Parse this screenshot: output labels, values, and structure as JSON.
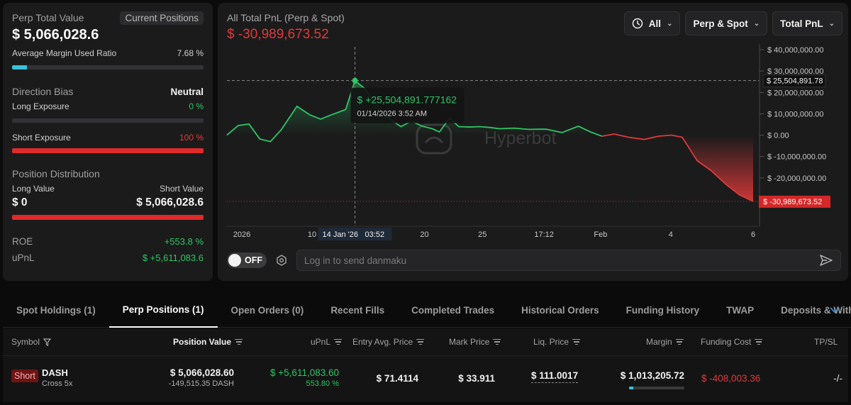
{
  "left": {
    "perp_total_label": "Perp Total Value",
    "current_positions_btn": "Current Positions",
    "perp_total_value": "$ 5,066,028.6",
    "margin_ratio_label": "Average Margin Used Ratio",
    "margin_ratio_value": "7.68 %",
    "margin_ratio_fraction": 0.0768,
    "direction_bias_label": "Direction Bias",
    "direction_bias_value": "Neutral",
    "long_exposure_label": "Long Exposure",
    "long_exposure_value": "0 %",
    "long_exposure_fraction": 0,
    "short_exposure_label": "Short Exposure",
    "short_exposure_value": "100 %",
    "short_exposure_fraction": 1,
    "position_dist_label": "Position Distribution",
    "long_value_label": "Long Value",
    "short_value_label": "Short Value",
    "long_value": "$ 0",
    "short_value": "$ 5,066,028.6",
    "roe_label": "ROE",
    "roe_value": "+553.8 %",
    "upnl_label": "uPnL",
    "upnl_value": "$ +5,611,083.6"
  },
  "chart": {
    "title": "All Total PnL (Perp & Spot)",
    "value": "$ -30,989,673.52",
    "ctrl_range": "All",
    "ctrl_scope": "Perp & Spot",
    "ctrl_metric": "Total PnL",
    "watermark": "Hyperbot",
    "tooltip_value": "$ +25,504,891.777162",
    "tooltip_date": "01/14/2026 3:52 AM",
    "cross_label_y": "$ 25,504,891.78",
    "last_label_y": "$ -30,989,673.52",
    "cross_label_x_date": "14 Jan '26",
    "cross_label_x_time": "03:52",
    "danmaku_toggle": "OFF",
    "danmaku_placeholder": "Log in to send danmaku",
    "accent_green": "#2fc566",
    "accent_red": "#e03a3a"
  },
  "chart_data": {
    "type": "line",
    "title": "All Total PnL (Perp & Spot)",
    "xlabel": "",
    "ylabel": "",
    "ylim": [
      -35000000,
      40000000
    ],
    "y_ticks": [
      "$ 40,000,000.00",
      "$ 30,000,000.00",
      "$ 20,000,000.00",
      "$ 10,000,000.00",
      "$ 0.00",
      "$ -10,000,000.00",
      "$ -20,000,000.00"
    ],
    "y_tick_values": [
      40000000,
      30000000,
      20000000,
      10000000,
      0,
      -10000000,
      -20000000
    ],
    "x_ticks": [
      "2026",
      "10",
      "20",
      "25",
      "17:12",
      "Feb",
      "4",
      "6"
    ],
    "x_tick_values": [
      0,
      98,
      255,
      336,
      422,
      501,
      599,
      714
    ],
    "x_span": 714,
    "grid": false,
    "series": [
      {
        "points": [
          [
            -21,
            0
          ],
          [
            -5,
            4500000
          ],
          [
            10,
            5200000
          ],
          [
            25,
            -1800000
          ],
          [
            40,
            -3000000
          ],
          [
            55,
            2500000
          ],
          [
            77,
            13500000
          ],
          [
            95,
            9500000
          ],
          [
            110,
            7500000
          ],
          [
            125,
            9500000
          ],
          [
            145,
            12000000
          ],
          [
            158,
            25504892
          ],
          [
            171,
            22000000
          ],
          [
            183,
            16500000
          ],
          [
            194,
            11500000
          ],
          [
            205,
            8000000
          ],
          [
            222,
            4000000
          ],
          [
            237,
            6500000
          ],
          [
            252,
            4200000
          ],
          [
            266,
            3000000
          ],
          [
            276,
            1500000
          ],
          [
            290,
            8000000
          ],
          [
            303,
            4000000
          ],
          [
            318,
            3800000
          ],
          [
            332,
            4000000
          ],
          [
            346,
            3600000
          ],
          [
            360,
            3000000
          ],
          [
            380,
            3300000
          ],
          [
            400,
            2700000
          ],
          [
            425,
            2800000
          ],
          [
            447,
            1200000
          ],
          [
            470,
            4200000
          ],
          [
            487,
            1500000
          ],
          [
            503,
            -500000
          ],
          [
            520,
            500000
          ],
          [
            540,
            -1000000
          ],
          [
            562,
            -2000000
          ],
          [
            582,
            -500000
          ],
          [
            600,
            0
          ],
          [
            615,
            -1000000
          ],
          [
            636,
            -12000000
          ],
          [
            655,
            -16500000
          ],
          [
            676,
            -23000000
          ],
          [
            695,
            -28000000
          ],
          [
            714,
            -30989673
          ]
        ]
      }
    ]
  },
  "tabs": [
    {
      "label": "Spot Holdings (1)",
      "active": false
    },
    {
      "label": "Perp Positions (1)",
      "active": true
    },
    {
      "label": "Open Orders (0)",
      "active": false
    },
    {
      "label": "Recent Fills",
      "active": false
    },
    {
      "label": "Completed Trades",
      "active": false
    },
    {
      "label": "Historical Orders",
      "active": false
    },
    {
      "label": "Funding History",
      "active": false
    },
    {
      "label": "TWAP",
      "active": false
    },
    {
      "label": "Deposits & Withdraw",
      "active": false
    }
  ],
  "table": {
    "headers": {
      "symbol": "Symbol",
      "position_value": "Position Value",
      "upnl": "uPnL",
      "entry_price": "Entry Avg. Price",
      "mark_price": "Mark Price",
      "liq_price": "Liq. Price",
      "margin": "Margin",
      "funding_cost": "Funding Cost",
      "tpsl": "TP/SL"
    },
    "rows": [
      {
        "side": "Short",
        "symbol": "DASH",
        "leverage": "Cross 5x",
        "position_value": "$ 5,066,028.60",
        "position_size": "-149,515.35 DASH",
        "upnl": "$ +5,611,083.60",
        "upnl_pct": "553.80 %",
        "entry_price": "$ 71.4114",
        "mark_price": "$ 33.911",
        "liq_price": "$ 111.0017",
        "margin": "$ 1,013,205.72",
        "margin_ratio_fraction": 0.0768,
        "funding_cost": "$ -408,003.36",
        "tpsl": "-/-"
      }
    ]
  }
}
